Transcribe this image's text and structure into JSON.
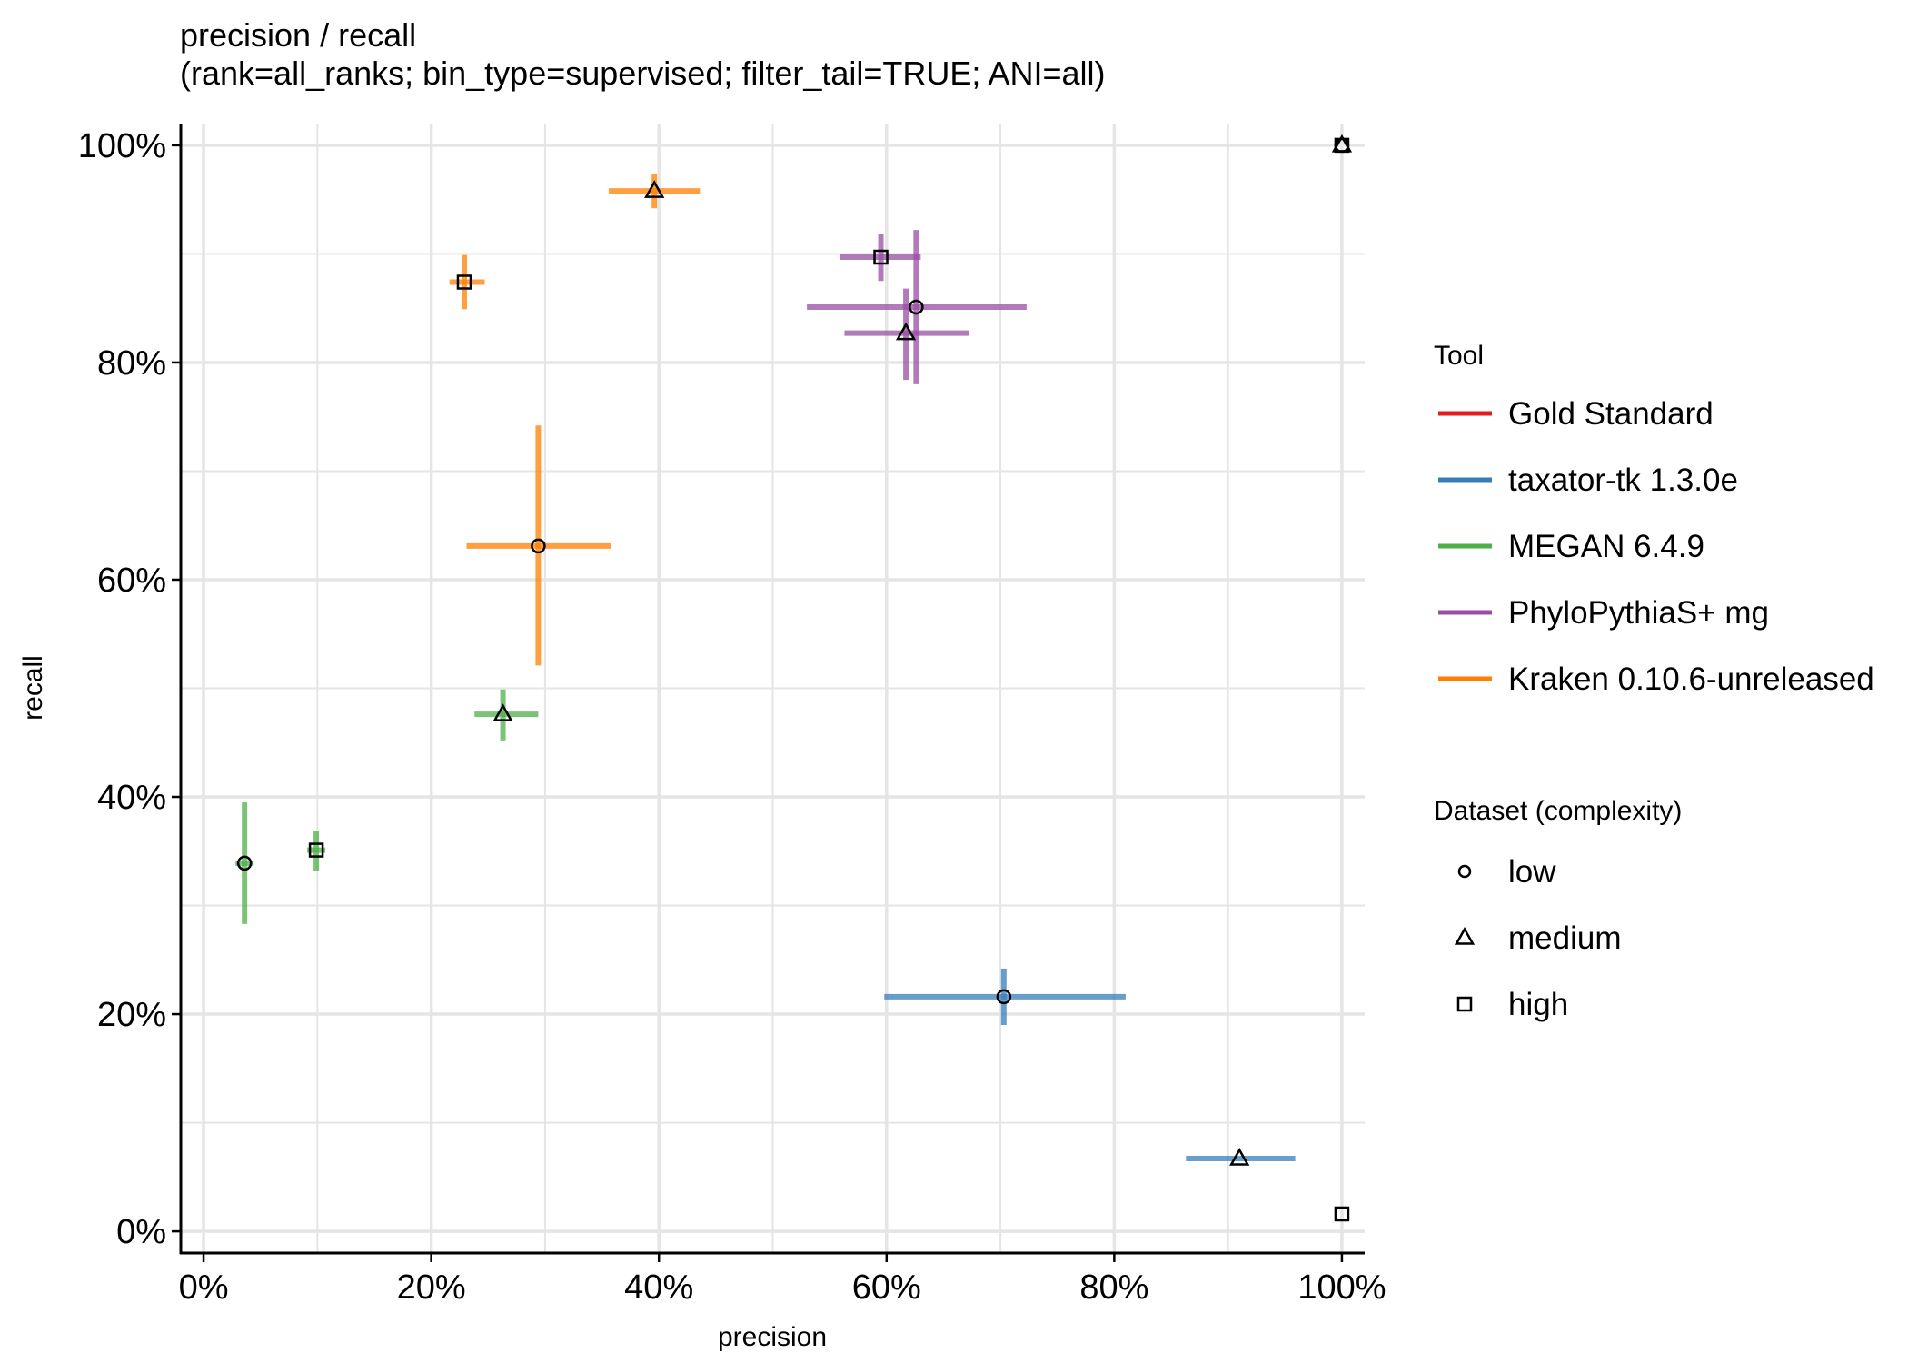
{
  "chart_data": {
    "type": "scatter",
    "title": "precision / recall",
    "subtitle": "(rank=all_ranks; bin_type=supervised; filter_tail=TRUE; ANI=all)",
    "xlabel": "precision",
    "ylabel": "recall",
    "xlim": [
      -2,
      102
    ],
    "ylim": [
      -2,
      102
    ],
    "x_ticks": [
      0,
      20,
      40,
      60,
      80,
      100
    ],
    "y_ticks": [
      0,
      20,
      40,
      60,
      80,
      100
    ],
    "x_tick_labels": [
      "0%",
      "20%",
      "40%",
      "60%",
      "80%",
      "100%"
    ],
    "y_tick_labels": [
      "0%",
      "20%",
      "40%",
      "60%",
      "80%",
      "100%"
    ],
    "grid": true,
    "legend_position": "right",
    "legend_tool_title": "Tool",
    "legend_dataset_title": "Dataset (complexity)",
    "datasets": [
      {
        "name": "low",
        "shape": "circle"
      },
      {
        "name": "medium",
        "shape": "triangle"
      },
      {
        "name": "high",
        "shape": "square"
      }
    ],
    "series": [
      {
        "name": "Gold Standard",
        "color": "#e41a1c",
        "points": [
          {
            "dataset": "low",
            "x": 100,
            "y": 100,
            "x_lo": 100,
            "x_hi": 100,
            "y_lo": 100,
            "y_hi": 100
          },
          {
            "dataset": "medium",
            "x": 100,
            "y": 100,
            "x_lo": 100,
            "x_hi": 100,
            "y_lo": 100,
            "y_hi": 100
          },
          {
            "dataset": "high",
            "x": 100,
            "y": 100,
            "x_lo": 100,
            "x_hi": 100,
            "y_lo": 100,
            "y_hi": 100
          }
        ]
      },
      {
        "name": "taxator-tk 1.3.0e",
        "color": "#377eb8",
        "points": [
          {
            "dataset": "low",
            "x": 70.3,
            "y": 21.6,
            "x_lo": 59.8,
            "x_hi": 81.0,
            "y_lo": 19.0,
            "y_hi": 24.2
          },
          {
            "dataset": "medium",
            "x": 91.0,
            "y": 6.7,
            "x_lo": 86.3,
            "x_hi": 95.9,
            "y_lo": 6.7,
            "y_hi": 6.7
          },
          {
            "dataset": "high",
            "x": 100,
            "y": 1.6,
            "x_lo": 100,
            "x_hi": 100,
            "y_lo": 1.6,
            "y_hi": 1.6
          }
        ]
      },
      {
        "name": "MEGAN 6.4.9",
        "color": "#4daf4a",
        "points": [
          {
            "dataset": "low",
            "x": 3.6,
            "y": 33.9,
            "x_lo": 2.8,
            "x_hi": 4.4,
            "y_lo": 28.3,
            "y_hi": 39.5
          },
          {
            "dataset": "medium",
            "x": 26.3,
            "y": 47.6,
            "x_lo": 23.8,
            "x_hi": 29.4,
            "y_lo": 45.2,
            "y_hi": 49.9
          },
          {
            "dataset": "high",
            "x": 9.9,
            "y": 35.1,
            "x_lo": 9.1,
            "x_hi": 10.7,
            "y_lo": 33.2,
            "y_hi": 36.9
          }
        ]
      },
      {
        "name": "PhyloPythiaS+ mg",
        "color": "#984ea3",
        "points": [
          {
            "dataset": "low",
            "x": 62.6,
            "y": 85.1,
            "x_lo": 53.0,
            "x_hi": 72.3,
            "y_lo": 78.0,
            "y_hi": 92.2
          },
          {
            "dataset": "medium",
            "x": 61.7,
            "y": 82.7,
            "x_lo": 56.3,
            "x_hi": 67.2,
            "y_lo": 78.4,
            "y_hi": 86.8
          },
          {
            "dataset": "high",
            "x": 59.5,
            "y": 89.7,
            "x_lo": 55.9,
            "x_hi": 63.0,
            "y_lo": 87.5,
            "y_hi": 91.8
          }
        ]
      },
      {
        "name": "Kraken 0.10.6-unreleased",
        "color": "#ff7f00",
        "points": [
          {
            "dataset": "low",
            "x": 29.4,
            "y": 63.1,
            "x_lo": 23.1,
            "x_hi": 35.8,
            "y_lo": 52.1,
            "y_hi": 74.2
          },
          {
            "dataset": "medium",
            "x": 39.6,
            "y": 95.8,
            "x_lo": 35.6,
            "x_hi": 43.6,
            "y_lo": 94.2,
            "y_hi": 97.4
          },
          {
            "dataset": "high",
            "x": 22.9,
            "y": 87.4,
            "x_lo": 21.6,
            "x_hi": 24.7,
            "y_lo": 84.9,
            "y_hi": 89.9
          }
        ]
      }
    ]
  }
}
